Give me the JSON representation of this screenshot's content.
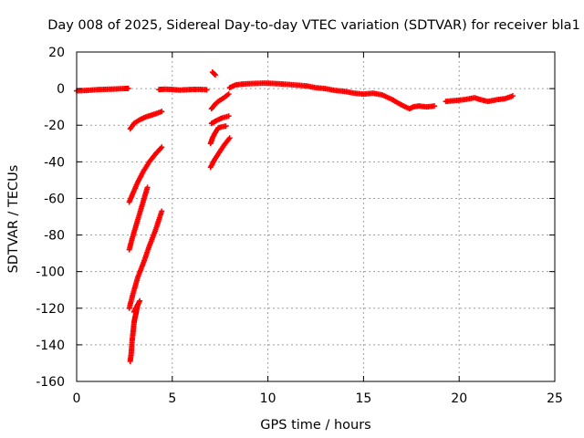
{
  "chart_data": {
    "type": "scatter",
    "title": "Day 008 of 2025, Sidereal Day-to-day VTEC variation (SDTVAR) for receiver bla1",
    "xlabel": "GPS time / hours",
    "ylabel": "SDTVAR / TECUs",
    "xlim": [
      0,
      25
    ],
    "ylim": [
      -160,
      20
    ],
    "xticks": [
      "0",
      "5",
      "10",
      "15",
      "20",
      "25"
    ],
    "yticks": [
      "20",
      "0",
      "-20",
      "-40",
      "-60",
      "-80",
      "-100",
      "-120",
      "-140",
      "-160"
    ],
    "grid": true,
    "marker": "+",
    "series_color": "#ff0000",
    "series": [
      {
        "name": "main",
        "points": [
          [
            0,
            -1.2
          ],
          [
            0.5,
            -1
          ],
          [
            1.0,
            -0.6
          ],
          [
            1.5,
            -0.4
          ],
          [
            2.0,
            -0.2
          ],
          [
            2.5,
            0
          ],
          [
            2.7,
            0.1
          ]
        ]
      },
      {
        "name": "main2",
        "points": [
          [
            4.3,
            -0.5
          ],
          [
            4.6,
            -0.3
          ],
          [
            5.0,
            -0.5
          ],
          [
            5.4,
            -0.8
          ],
          [
            5.9,
            -0.5
          ],
          [
            6.3,
            -0.4
          ],
          [
            6.8,
            -0.6
          ]
        ]
      },
      {
        "name": "main3",
        "points": [
          [
            8.0,
            0.5
          ],
          [
            8.3,
            2.0
          ],
          [
            8.7,
            2.5
          ],
          [
            9.2,
            2.8
          ],
          [
            9.8,
            3.0
          ],
          [
            10.3,
            2.8
          ],
          [
            10.8,
            2.5
          ],
          [
            11.4,
            2.0
          ],
          [
            12.0,
            1.5
          ],
          [
            12.5,
            0.5
          ],
          [
            13.0,
            0
          ],
          [
            13.5,
            -1
          ],
          [
            14.0,
            -1.5
          ],
          [
            14.5,
            -2.5
          ],
          [
            15.0,
            -3
          ],
          [
            15.5,
            -2.5
          ],
          [
            16.0,
            -3.5
          ],
          [
            16.5,
            -6
          ],
          [
            17.0,
            -9
          ],
          [
            17.4,
            -11
          ],
          [
            17.6,
            -10
          ],
          [
            17.9,
            -9.5
          ],
          [
            18.3,
            -10
          ],
          [
            18.7,
            -9.5
          ]
        ]
      },
      {
        "name": "main4",
        "points": [
          [
            19.3,
            -7
          ],
          [
            19.8,
            -6.5
          ],
          [
            20.3,
            -6
          ],
          [
            20.8,
            -5
          ],
          [
            21.1,
            -6
          ],
          [
            21.5,
            -7
          ],
          [
            22.0,
            -6
          ],
          [
            22.4,
            -5.5
          ],
          [
            22.8,
            -4
          ]
        ]
      },
      {
        "name": "arc1",
        "points": [
          [
            2.8,
            -22
          ],
          [
            3.0,
            -19
          ],
          [
            3.3,
            -17
          ],
          [
            3.6,
            -15.5
          ],
          [
            3.9,
            -14.5
          ],
          [
            4.2,
            -13.5
          ],
          [
            4.45,
            -12.5
          ]
        ]
      },
      {
        "name": "arc2",
        "points": [
          [
            2.75,
            -62
          ],
          [
            2.95,
            -57
          ],
          [
            3.2,
            -51
          ],
          [
            3.5,
            -45
          ],
          [
            3.8,
            -40
          ],
          [
            4.1,
            -36
          ],
          [
            4.45,
            -32
          ]
        ]
      },
      {
        "name": "arc3",
        "points": [
          [
            2.75,
            -88
          ],
          [
            2.9,
            -82
          ],
          [
            3.1,
            -75
          ],
          [
            3.3,
            -68
          ],
          [
            3.5,
            -61
          ],
          [
            3.7,
            -54
          ]
        ]
      },
      {
        "name": "arc4",
        "points": [
          [
            2.75,
            -120
          ],
          [
            2.95,
            -112
          ],
          [
            3.2,
            -103
          ],
          [
            3.5,
            -95
          ],
          [
            3.8,
            -86
          ],
          [
            4.1,
            -78
          ],
          [
            4.45,
            -67
          ]
        ]
      },
      {
        "name": "arc5",
        "points": [
          [
            2.8,
            -149
          ],
          [
            2.85,
            -145
          ],
          [
            2.9,
            -138
          ],
          [
            2.95,
            -133
          ],
          [
            3.0,
            -128
          ],
          [
            3.05,
            -125
          ],
          [
            3.1,
            -123
          ],
          [
            3.15,
            -120
          ],
          [
            3.2,
            -118
          ]
        ]
      },
      {
        "name": "arc6",
        "points": [
          [
            3.0,
            -122
          ],
          [
            3.1,
            -120
          ],
          [
            3.2,
            -118
          ],
          [
            3.3,
            -116
          ]
        ]
      },
      {
        "name": "late1",
        "points": [
          [
            7.05,
            -11
          ],
          [
            7.2,
            -9
          ],
          [
            7.4,
            -7
          ],
          [
            7.7,
            -5
          ],
          [
            7.95,
            -3
          ]
        ]
      },
      {
        "name": "late2",
        "points": [
          [
            7.1,
            9
          ],
          [
            7.25,
            7.5
          ]
        ]
      },
      {
        "name": "late3",
        "points": [
          [
            7.05,
            -19
          ],
          [
            7.3,
            -17.5
          ],
          [
            7.6,
            -16
          ],
          [
            7.95,
            -15
          ]
        ]
      },
      {
        "name": "late4",
        "points": [
          [
            7.0,
            -30
          ],
          [
            7.1,
            -27
          ],
          [
            7.25,
            -24
          ],
          [
            7.4,
            -21.5
          ],
          [
            7.55,
            -21
          ],
          [
            7.8,
            -20.5
          ]
        ]
      },
      {
        "name": "late5",
        "points": [
          [
            7.0,
            -43
          ],
          [
            7.2,
            -39
          ],
          [
            7.45,
            -35
          ],
          [
            7.7,
            -31
          ],
          [
            8.0,
            -27
          ]
        ]
      }
    ]
  }
}
